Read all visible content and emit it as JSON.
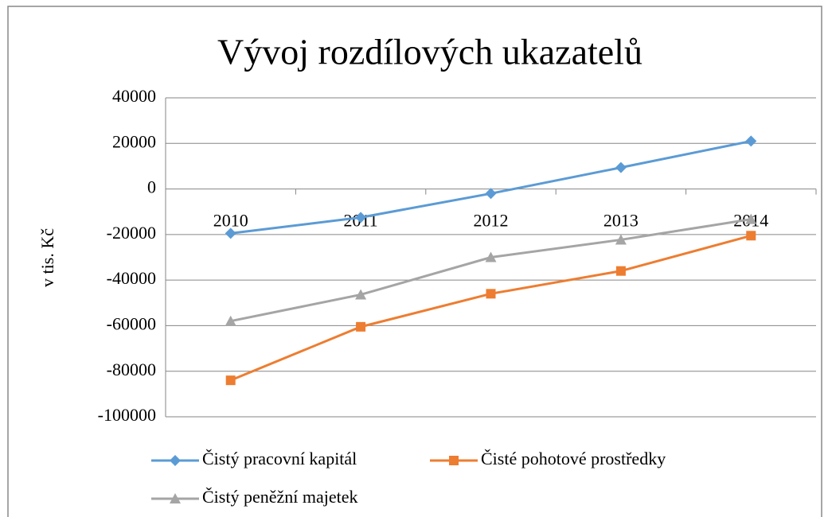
{
  "chart_data": {
    "type": "line",
    "title": "Vývoj rozdílových ukazatelů",
    "y_label": "v tis. Kč",
    "categories": [
      "2010",
      "2011",
      "2012",
      "2013",
      "2014"
    ],
    "series": [
      {
        "name": "Čistý pracovní kapitál",
        "color": "#5b9bd5",
        "marker": "diamond",
        "values": [
          -19500,
          -12500,
          -2000,
          9400,
          21000
        ]
      },
      {
        "name": "Čisté pohotové prostředky",
        "color": "#ed7d31",
        "marker": "square",
        "values": [
          -84000,
          -60500,
          -46000,
          -36000,
          -20500
        ]
      },
      {
        "name": "Čistý peněžní majetek",
        "color": "#a5a5a5",
        "marker": "triangle",
        "values": [
          -58000,
          -46400,
          -30000,
          -22300,
          -13300
        ]
      }
    ],
    "ylim": [
      -100000,
      40000
    ],
    "yticks": [
      -100000,
      -80000,
      -60000,
      -40000,
      -20000,
      0,
      20000,
      40000
    ],
    "grid": true,
    "legend": "bottom"
  }
}
